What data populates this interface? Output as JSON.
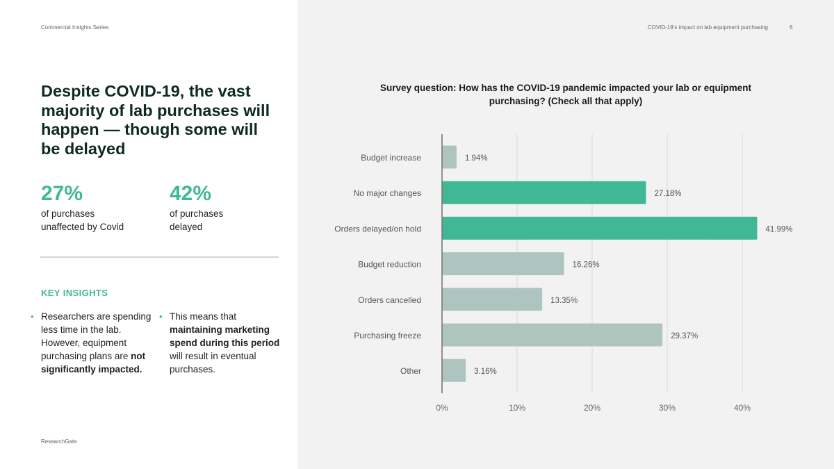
{
  "header": {
    "series": "Commercial Insights Series",
    "topic": "COVID-19's impact on lab equipment purchasing",
    "page_number": "6"
  },
  "headline": "Despite COVID-19, the vast majority of lab purchases will happen — though some will be delayed",
  "stats": [
    {
      "value": "27%",
      "label_line1": "of purchases",
      "label_line2": "unaffected by Covid"
    },
    {
      "value": "42%",
      "label_line1": "of purchases",
      "label_line2": "delayed"
    }
  ],
  "key_insights": {
    "title": "KEY INSIGHTS",
    "bullet1": {
      "text_before": "Researchers are spending less time in the lab. However, equipment purchasing plans are ",
      "bold": "not significantly impacted."
    },
    "bullet2": {
      "text_before": "This means that ",
      "bold": "maintaining marketing spend during this period",
      "text_after": " will result in eventual purchases."
    }
  },
  "footer": {
    "brand": "ResearchGate"
  },
  "colors": {
    "accent": "#40b896",
    "bar_muted": "#aec5bf",
    "grid": "#d9d9d9"
  },
  "chart_data": {
    "type": "bar",
    "orientation": "horizontal",
    "title": "Survey question: How has the COVID-19 pandemic impacted your lab or equipment purchasing? (Check all that apply)",
    "categories": [
      "Budget increase",
      "No major changes",
      "Orders delayed/on hold",
      "Budget reduction",
      "Orders cancelled",
      "Purchasing freeze",
      "Other"
    ],
    "values": [
      1.94,
      27.18,
      41.99,
      16.26,
      13.35,
      29.37,
      3.16
    ],
    "value_labels": [
      "1.94%",
      "27.18%",
      "41.99%",
      "16.26%",
      "13.35%",
      "29.37%",
      "3.16%"
    ],
    "highlighted": [
      false,
      true,
      true,
      false,
      false,
      false,
      false
    ],
    "xlim": [
      0,
      40
    ],
    "xticks": [
      0,
      10,
      20,
      30,
      40
    ],
    "xtick_labels": [
      "0%",
      "10%",
      "20%",
      "30%",
      "40%"
    ],
    "grid": true
  }
}
